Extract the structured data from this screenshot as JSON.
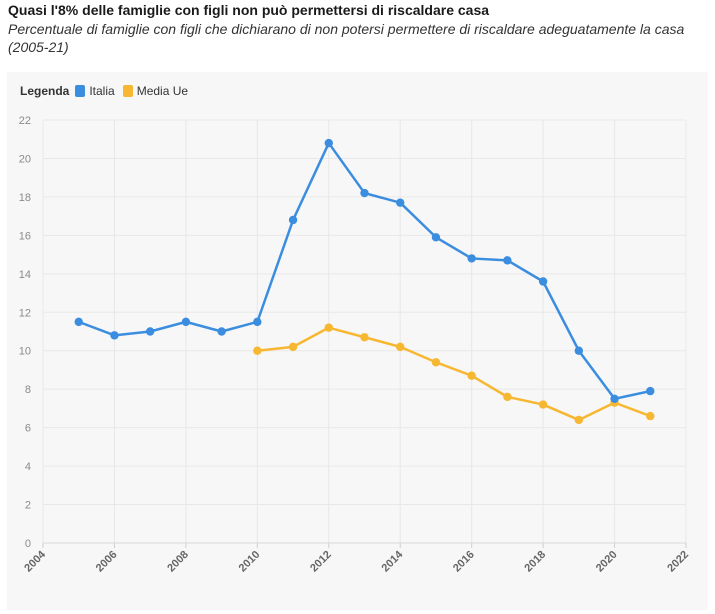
{
  "header": {
    "title": "Quasi l'8% delle famiglie con figli non può permettersi di riscaldare casa",
    "subtitle": "Percentuale di famiglie con figli che dichiarano di non potersi permettere di riscaldare adeguatamente la casa (2005-21)"
  },
  "legend": {
    "title": "Legenda"
  },
  "colors": {
    "italia": "#3b8de0",
    "media_ue": "#f7b731",
    "grid": "#e8e8e8",
    "axis_text": "#8a8a8a",
    "x_tick_text": "#666666"
  },
  "chart_data": {
    "type": "line",
    "title": "Quasi l'8% delle famiglie con figli non può permettersi di riscaldare casa",
    "subtitle": "Percentuale di famiglie con figli che dichiarano di non potersi permettere di riscaldare adeguatamente la casa (2005-21)",
    "xlabel": "",
    "ylabel": "",
    "xlim": [
      2004,
      2022
    ],
    "ylim": [
      0,
      22
    ],
    "x_ticks": [
      2004,
      2006,
      2008,
      2010,
      2012,
      2014,
      2016,
      2018,
      2020,
      2022
    ],
    "y_ticks": [
      0,
      2,
      4,
      6,
      8,
      10,
      12,
      14,
      16,
      18,
      20,
      22
    ],
    "grid": true,
    "legend_position": "top-left",
    "series": [
      {
        "name": "Italia",
        "color": "#3b8de0",
        "x": [
          2005,
          2006,
          2007,
          2008,
          2009,
          2010,
          2011,
          2012,
          2013,
          2014,
          2015,
          2016,
          2017,
          2018,
          2019,
          2020,
          2021
        ],
        "values": [
          11.5,
          10.8,
          11.0,
          11.5,
          11.0,
          11.5,
          16.8,
          20.8,
          18.2,
          17.7,
          15.9,
          14.8,
          14.7,
          13.6,
          10.0,
          7.5,
          7.9
        ]
      },
      {
        "name": "Media Ue",
        "color": "#f7b731",
        "x": [
          2010,
          2011,
          2012,
          2013,
          2014,
          2015,
          2016,
          2017,
          2018,
          2019,
          2020,
          2021
        ],
        "values": [
          10.0,
          10.2,
          11.2,
          10.7,
          10.2,
          9.4,
          8.7,
          7.6,
          7.2,
          6.4,
          7.3,
          6.6
        ]
      }
    ]
  }
}
